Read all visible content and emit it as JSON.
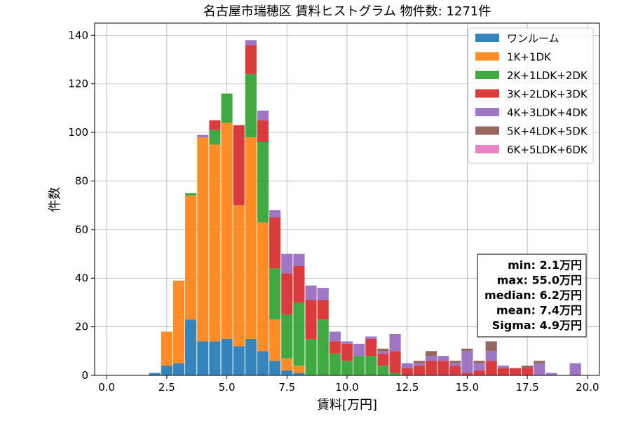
{
  "chart_data": {
    "type": "bar",
    "stacked": true,
    "title": "名古屋市瑞穂区 賃料ヒストグラム  物件数: 1271件",
    "xlabel": "賃料[万円]",
    "ylabel": "件数",
    "xlim": [
      -0.5,
      20.5
    ],
    "ylim": [
      0,
      145
    ],
    "xticks": [
      0.0,
      2.5,
      5.0,
      7.5,
      10.0,
      12.5,
      15.0,
      17.5,
      20.0
    ],
    "xtick_labels": [
      "0.0",
      "2.5",
      "5.0",
      "7.5",
      "10.0",
      "12.5",
      "15.0",
      "17.5",
      "20.0"
    ],
    "yticks": [
      0,
      20,
      40,
      60,
      80,
      100,
      120,
      140
    ],
    "ytick_labels": [
      "0",
      "20",
      "40",
      "60",
      "80",
      "100",
      "120",
      "140"
    ],
    "grid": true,
    "legend_position": "top-right",
    "bin_width": 0.5,
    "bin_starts": [
      1.75,
      2.25,
      2.75,
      3.25,
      3.75,
      4.25,
      4.75,
      5.25,
      5.75,
      6.25,
      6.75,
      7.25,
      7.75,
      8.25,
      8.75,
      9.25,
      9.75,
      10.25,
      10.75,
      11.25,
      11.75,
      12.25,
      12.75,
      13.25,
      13.75,
      14.25,
      14.75,
      15.25,
      15.75,
      16.25,
      16.75,
      17.25,
      17.75,
      18.25,
      19.25
    ],
    "series": [
      {
        "name": "ワンルーム",
        "color": "#1f77b4",
        "values": [
          1,
          4,
          5,
          23,
          14,
          14,
          15,
          12,
          15,
          10,
          6,
          2,
          1,
          0,
          0,
          0,
          0,
          0,
          0,
          0,
          0,
          0,
          0,
          0,
          0,
          0,
          0,
          0,
          0,
          0,
          0,
          0,
          0,
          0,
          0
        ]
      },
      {
        "name": "1K+1DK",
        "color": "#ff7f0e",
        "values": [
          0,
          14,
          34,
          51,
          84,
          81,
          89,
          58,
          83,
          53,
          17,
          5,
          3,
          0,
          0,
          0,
          0,
          0,
          0,
          0,
          0,
          0,
          0,
          0,
          0,
          0,
          0,
          0,
          0,
          0,
          0,
          0,
          0,
          0,
          0
        ]
      },
      {
        "name": "2K+1LDK+2DK",
        "color": "#2ca02c",
        "values": [
          0,
          0,
          0,
          1,
          0,
          6,
          12,
          0,
          26,
          33,
          21,
          18,
          26,
          15,
          23,
          9,
          6,
          8,
          8,
          4,
          1,
          0,
          0,
          0,
          0,
          0,
          0,
          0,
          0,
          0,
          0,
          0,
          0,
          0,
          0
        ]
      },
      {
        "name": "3K+2LDK+3DK",
        "color": "#d62728",
        "values": [
          0,
          0,
          0,
          0,
          0,
          4,
          0,
          33,
          12,
          9,
          21,
          17,
          15,
          16,
          8,
          5,
          7,
          0,
          7,
          5,
          9,
          3,
          4,
          6,
          6,
          4,
          1,
          2,
          6,
          3,
          3,
          3,
          0,
          0,
          0
        ]
      },
      {
        "name": "4K+3LDK+4DK",
        "color": "#9467bd",
        "values": [
          0,
          0,
          0,
          0,
          1,
          0,
          0,
          0,
          2,
          4,
          3,
          8,
          5,
          6,
          5,
          4,
          1,
          5,
          1,
          1,
          7,
          2,
          1,
          2,
          2,
          1,
          9,
          3,
          4,
          1,
          0,
          0,
          5,
          1,
          5
        ]
      },
      {
        "name": "5K+4LDK+5DK",
        "color": "#8c564b",
        "values": [
          0,
          0,
          0,
          0,
          0,
          0,
          0,
          0,
          0,
          0,
          0,
          0,
          0,
          0,
          0,
          0,
          0,
          0,
          0,
          1,
          0,
          0,
          1,
          2,
          0,
          1,
          1,
          1,
          4,
          0,
          0,
          1,
          1,
          0,
          0
        ]
      },
      {
        "name": "6K+5LDK+6DK",
        "color": "#e377c2",
        "values": [
          0,
          0,
          0,
          0,
          0,
          0,
          0,
          0,
          0,
          0,
          0,
          0,
          0,
          0,
          0,
          0,
          0,
          0,
          0,
          0,
          0,
          0,
          0,
          0,
          0,
          0,
          0,
          0,
          0,
          0,
          0,
          0,
          0,
          0,
          0
        ]
      }
    ],
    "stats_box": {
      "lines": [
        "min: 2.1万円",
        "max: 55.0万円",
        "median: 6.2万円",
        "mean: 7.4万円",
        "Sigma: 4.9万円"
      ]
    }
  }
}
